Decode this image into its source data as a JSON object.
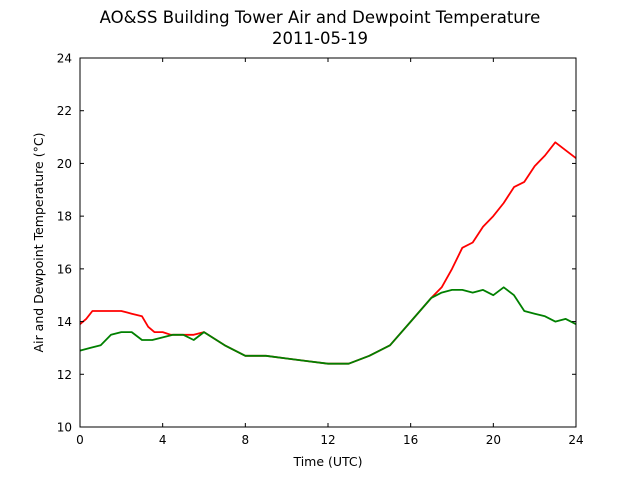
{
  "chart_data": {
    "type": "line",
    "title": "AO&SS Building Tower Air and Dewpoint Temperature",
    "subtitle": "2011-05-19",
    "xlabel": "Time (UTC)",
    "ylabel": "Air and Dewpoint Temperature (°C)",
    "xlim": [
      0,
      24
    ],
    "ylim": [
      10,
      24
    ],
    "xticks": [
      0,
      4,
      8,
      12,
      16,
      20,
      24
    ],
    "yticks": [
      10,
      12,
      14,
      16,
      18,
      20,
      22,
      24
    ],
    "grid": false,
    "series": [
      {
        "color": "#ff0000",
        "x": [
          0,
          0.3,
          0.6,
          1.0,
          1.5,
          2.0,
          2.5,
          3.0,
          3.3,
          3.6,
          4.0,
          4.4,
          4.8,
          5.5,
          6.0,
          7.0,
          8.0,
          9.0,
          10.0,
          11.0,
          12.0,
          13.0,
          14.0,
          15.0,
          16.0,
          17.0,
          17.5,
          18.0,
          18.5,
          19.0,
          19.5,
          20.0,
          20.5,
          21.0,
          21.5,
          22.0,
          22.5,
          23.0,
          23.5,
          24.0
        ],
        "y": [
          13.9,
          14.1,
          14.4,
          14.4,
          14.4,
          14.4,
          14.3,
          14.2,
          13.8,
          13.6,
          13.6,
          13.5,
          13.5,
          13.5,
          13.6,
          13.1,
          12.7,
          12.7,
          12.6,
          12.5,
          12.4,
          12.4,
          12.7,
          13.1,
          14.0,
          14.9,
          15.3,
          16.0,
          16.8,
          17.0,
          17.6,
          18.0,
          18.5,
          19.1,
          19.3,
          19.9,
          20.3,
          20.8,
          20.5,
          20.2
        ]
      },
      {
        "color": "#008000",
        "x": [
          0,
          0.5,
          1.0,
          1.5,
          2.0,
          2.5,
          3.0,
          3.5,
          4.0,
          4.5,
          5.0,
          5.5,
          6.0,
          7.0,
          8.0,
          9.0,
          10.0,
          11.0,
          12.0,
          13.0,
          14.0,
          15.0,
          16.0,
          17.0,
          17.5,
          18.0,
          18.5,
          19.0,
          19.5,
          20.0,
          20.5,
          21.0,
          21.5,
          22.0,
          22.5,
          23.0,
          23.5,
          24.0
        ],
        "y": [
          12.9,
          13.0,
          13.1,
          13.5,
          13.6,
          13.6,
          13.3,
          13.3,
          13.4,
          13.5,
          13.5,
          13.3,
          13.6,
          13.1,
          12.7,
          12.7,
          12.6,
          12.5,
          12.4,
          12.4,
          12.7,
          13.1,
          14.0,
          14.9,
          15.1,
          15.2,
          15.2,
          15.1,
          15.2,
          15.0,
          15.3,
          15.0,
          14.4,
          14.3,
          14.2,
          14.0,
          14.1,
          13.9
        ]
      }
    ]
  }
}
